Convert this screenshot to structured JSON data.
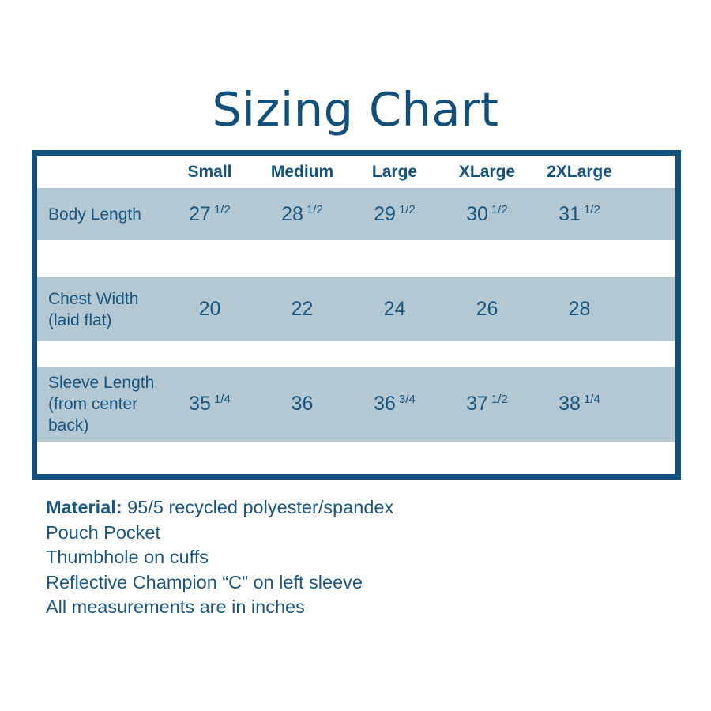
{
  "title": "Sizing Chart",
  "colors": {
    "dark_blue_text": "#1a567f",
    "title_blue": "#11507b",
    "border_blue": "#11517c",
    "row_band_blue": "#b3c8d3",
    "background": "#ffffff"
  },
  "table": {
    "columns": [
      "Small",
      "Medium",
      "Large",
      "XLarge",
      "2XLarge"
    ],
    "rows": [
      {
        "label": "Body Length",
        "cells": [
          {
            "w": "27",
            "f": "1/2"
          },
          {
            "w": "28",
            "f": "1/2"
          },
          {
            "w": "29",
            "f": "1/2"
          },
          {
            "w": "30",
            "f": "1/2"
          },
          {
            "w": "31",
            "f": "1/2"
          }
        ]
      },
      {
        "label": "Chest Width (laid flat)",
        "cells": [
          {
            "w": "20",
            "f": ""
          },
          {
            "w": "22",
            "f": ""
          },
          {
            "w": "24",
            "f": ""
          },
          {
            "w": "26",
            "f": ""
          },
          {
            "w": "28",
            "f": ""
          }
        ]
      },
      {
        "label": "Sleeve Length (from center back)",
        "cells": [
          {
            "w": "35",
            "f": "1/4"
          },
          {
            "w": "36",
            "f": ""
          },
          {
            "w": "36",
            "f": "3/4"
          },
          {
            "w": "37",
            "f": "1/2"
          },
          {
            "w": "38",
            "f": "1/4"
          }
        ]
      }
    ]
  },
  "notes": {
    "material_label": "Material:",
    "material_text": "95/5 recycled polyester/spandex",
    "line1": "Pouch Pocket",
    "line2": "Thumbhole on cuffs",
    "line3": "Reflective Champion “C” on left sleeve",
    "line4": "All measurements are in inches"
  },
  "chart_data": {
    "type": "table",
    "title": "Sizing Chart",
    "categories": [
      "Small",
      "Medium",
      "Large",
      "XLarge",
      "2XLarge"
    ],
    "series": [
      {
        "name": "Body Length",
        "values": [
          27.5,
          28.5,
          29.5,
          30.5,
          31.5
        ]
      },
      {
        "name": "Chest Width (laid flat)",
        "values": [
          20,
          22,
          24,
          26,
          28
        ]
      },
      {
        "name": "Sleeve Length (from center back)",
        "values": [
          35.25,
          36,
          36.75,
          37.5,
          38.25
        ]
      }
    ],
    "units": "inches"
  }
}
